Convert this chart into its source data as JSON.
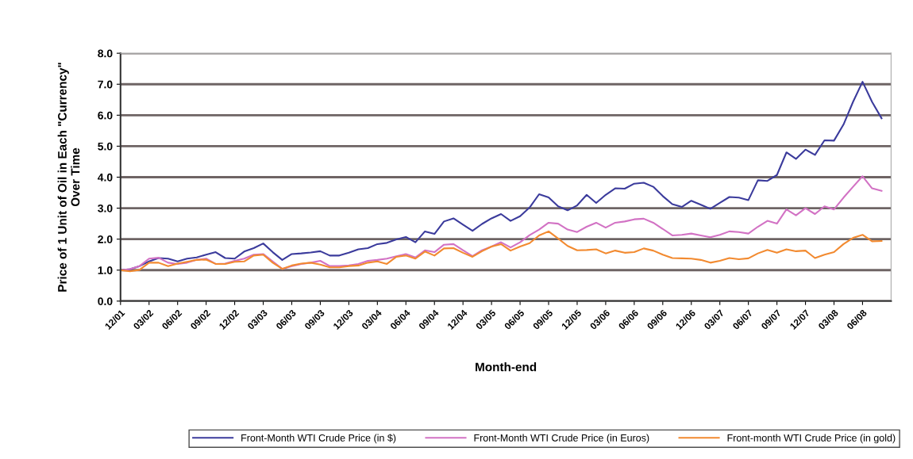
{
  "chart_data": {
    "type": "line",
    "xlabel": "Month-end",
    "ylabel": "Price of 1 Unit of Oil in Each \"Currency\"\nOver Time",
    "categories": [
      "12/01",
      null,
      null,
      "03/02",
      null,
      null,
      "06/02",
      null,
      null,
      "09/02",
      null,
      null,
      "12/02",
      null,
      null,
      "03/03",
      null,
      null,
      "06/03",
      null,
      null,
      "09/03",
      null,
      null,
      "12/03",
      null,
      null,
      "03/04",
      null,
      null,
      "06/04",
      null,
      null,
      "09/04",
      null,
      null,
      "12/04",
      null,
      null,
      "03/05",
      null,
      null,
      "06/05",
      null,
      null,
      "09/05",
      null,
      null,
      "12/05",
      null,
      null,
      "03/06",
      null,
      null,
      "06/06",
      null,
      null,
      "09/06",
      null,
      null,
      "12/06",
      null,
      null,
      "03/07",
      null,
      null,
      "06/07",
      null,
      null,
      "09/07",
      null,
      null,
      "12/07",
      null,
      null,
      "03/08",
      null,
      null,
      "06/08",
      null,
      null
    ],
    "series": [
      {
        "name": "Front-Month WTI Crude Price (in $)",
        "color": "#3b3b9c",
        "values": [
          1.0,
          1.03,
          1.13,
          1.28,
          1.39,
          1.37,
          1.28,
          1.37,
          1.41,
          1.5,
          1.58,
          1.39,
          1.37,
          1.6,
          1.71,
          1.86,
          1.58,
          1.33,
          1.52,
          1.54,
          1.57,
          1.61,
          1.47,
          1.47,
          1.56,
          1.67,
          1.71,
          1.84,
          1.88,
          1.99,
          2.07,
          1.9,
          2.25,
          2.17,
          2.57,
          2.67,
          2.47,
          2.27,
          2.49,
          2.67,
          2.81,
          2.59,
          2.74,
          3.02,
          3.45,
          3.35,
          3.06,
          2.93,
          3.09,
          3.43,
          3.17,
          3.43,
          3.64,
          3.63,
          3.79,
          3.82,
          3.69,
          3.39,
          3.13,
          3.04,
          3.24,
          3.11,
          2.98,
          3.17,
          3.36,
          3.34,
          3.26,
          3.9,
          3.88,
          4.07,
          4.8,
          4.59,
          4.89,
          4.72,
          5.19,
          5.18,
          5.7,
          6.43,
          7.08,
          6.43,
          5.9
        ]
      },
      {
        "name": "Front-Month WTI Crude Price (in Euros)",
        "color": "#d272c4",
        "values": [
          1.0,
          1.03,
          1.13,
          1.37,
          1.4,
          1.24,
          1.2,
          1.24,
          1.33,
          1.37,
          1.2,
          1.21,
          1.3,
          1.37,
          1.5,
          1.52,
          1.28,
          1.04,
          1.13,
          1.2,
          1.24,
          1.3,
          1.13,
          1.13,
          1.15,
          1.2,
          1.3,
          1.33,
          1.37,
          1.45,
          1.52,
          1.41,
          1.64,
          1.58,
          1.82,
          1.84,
          1.64,
          1.45,
          1.64,
          1.76,
          1.9,
          1.73,
          1.9,
          2.13,
          2.31,
          2.53,
          2.5,
          2.31,
          2.23,
          2.4,
          2.53,
          2.37,
          2.53,
          2.57,
          2.64,
          2.66,
          2.53,
          2.33,
          2.12,
          2.14,
          2.18,
          2.12,
          2.06,
          2.14,
          2.25,
          2.23,
          2.18,
          2.4,
          2.59,
          2.5,
          2.96,
          2.77,
          3.0,
          2.81,
          3.06,
          2.96,
          3.34,
          3.69,
          4.03,
          3.64,
          3.56
        ]
      },
      {
        "name": "Front-month WTI Crude Price (in gold)",
        "color": "#f28a30",
        "values": [
          1.0,
          0.96,
          1.01,
          1.24,
          1.24,
          1.13,
          1.21,
          1.27,
          1.33,
          1.34,
          1.2,
          1.2,
          1.27,
          1.28,
          1.47,
          1.5,
          1.24,
          1.04,
          1.15,
          1.21,
          1.24,
          1.18,
          1.09,
          1.09,
          1.13,
          1.15,
          1.24,
          1.28,
          1.2,
          1.43,
          1.47,
          1.37,
          1.6,
          1.47,
          1.7,
          1.71,
          1.56,
          1.43,
          1.61,
          1.76,
          1.84,
          1.63,
          1.76,
          1.87,
          2.12,
          2.25,
          2.02,
          1.78,
          1.64,
          1.65,
          1.67,
          1.54,
          1.63,
          1.56,
          1.58,
          1.7,
          1.63,
          1.5,
          1.39,
          1.38,
          1.37,
          1.33,
          1.24,
          1.3,
          1.39,
          1.35,
          1.38,
          1.54,
          1.65,
          1.56,
          1.67,
          1.61,
          1.63,
          1.39,
          1.5,
          1.58,
          1.84,
          2.04,
          2.14,
          1.93,
          1.94
        ]
      }
    ],
    "ylim": [
      0,
      8
    ],
    "yticks": [
      {
        "value": 0,
        "label": "0.0"
      },
      {
        "value": 1,
        "label": "1.0"
      },
      {
        "value": 2,
        "label": "2.0"
      },
      {
        "value": 3,
        "label": "3.0"
      },
      {
        "value": 4,
        "label": "4.0"
      },
      {
        "value": 5,
        "label": "5.0"
      },
      {
        "value": 6,
        "label": "6.0"
      },
      {
        "value": 7,
        "label": "7.0"
      },
      {
        "value": 8,
        "label": "8.0"
      }
    ],
    "grid": "y",
    "legend": "bottom",
    "marker": "none",
    "line_style": "solid"
  }
}
